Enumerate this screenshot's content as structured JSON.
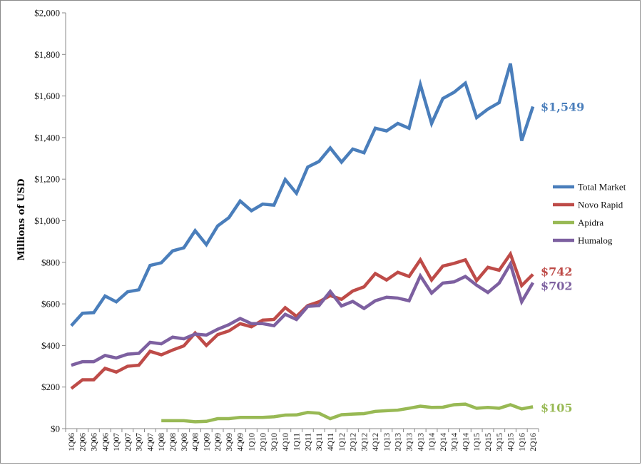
{
  "chart_data": {
    "type": "line",
    "title": "",
    "xlabel": "",
    "ylabel": "Millions of USD",
    "ylim": [
      0,
      2000
    ],
    "yticks": [
      0,
      200,
      400,
      600,
      800,
      1000,
      1200,
      1400,
      1600,
      1800,
      2000
    ],
    "ytick_labels": [
      "$0",
      "$200",
      "$400",
      "$600",
      "$800",
      "$1,000",
      "$1,200",
      "$1,400",
      "$1,600",
      "$1,800",
      "$2,000"
    ],
    "grid": false,
    "legend_position": "right",
    "categories": [
      "1Q06",
      "2Q06",
      "3Q06",
      "4Q06",
      "1Q07",
      "2Q07",
      "3Q07",
      "4Q07",
      "1Q08",
      "2Q08",
      "3Q08",
      "4Q08",
      "1Q09",
      "2Q09",
      "3Q09",
      "4Q09",
      "1Q10",
      "2Q10",
      "3Q10",
      "4Q10",
      "1Q11",
      "2Q11",
      "3Q11",
      "4Q11",
      "1Q12",
      "2Q12",
      "3Q12",
      "4Q12",
      "1Q13",
      "2Q13",
      "3Q13",
      "4Q13",
      "1Q14",
      "2Q14",
      "3Q14",
      "4Q14",
      "1Q15",
      "2Q15",
      "3Q15",
      "4Q15",
      "1Q16",
      "2Q16"
    ],
    "series": [
      {
        "name": "Total Market",
        "color": "#4a7ebb",
        "end_label": "$1,549",
        "values": [
          495,
          555,
          558,
          638,
          610,
          658,
          668,
          785,
          798,
          855,
          870,
          952,
          885,
          975,
          1015,
          1095,
          1048,
          1080,
          1075,
          1198,
          1132,
          1258,
          1285,
          1350,
          1282,
          1345,
          1327,
          1445,
          1432,
          1468,
          1445,
          1655,
          1468,
          1588,
          1618,
          1662,
          1496,
          1537,
          1568,
          1756,
          1385,
          1549
        ]
      },
      {
        "name": "Novo Rapid",
        "color": "#be4b48",
        "end_label": "$742",
        "values": [
          193,
          235,
          235,
          290,
          272,
          300,
          305,
          372,
          355,
          378,
          398,
          460,
          400,
          452,
          470,
          505,
          490,
          522,
          525,
          582,
          540,
          592,
          610,
          640,
          622,
          662,
          682,
          746,
          715,
          752,
          732,
          812,
          715,
          782,
          795,
          812,
          712,
          776,
          762,
          840,
          688,
          742
        ]
      },
      {
        "name": "Apidra",
        "color": "#98b954",
        "end_label": "$105",
        "values": [
          null,
          null,
          null,
          null,
          null,
          null,
          null,
          null,
          38,
          38,
          38,
          33,
          35,
          48,
          48,
          54,
          54,
          54,
          57,
          65,
          66,
          78,
          74,
          48,
          67,
          70,
          72,
          83,
          86,
          89,
          98,
          108,
          102,
          103,
          115,
          118,
          98,
          102,
          98,
          115,
          95,
          105
        ]
      },
      {
        "name": "Humalog",
        "color": "#7d60a0",
        "end_label": "$702",
        "values": [
          305,
          322,
          322,
          352,
          340,
          358,
          362,
          415,
          408,
          440,
          432,
          455,
          450,
          478,
          500,
          530,
          505,
          505,
          495,
          550,
          525,
          588,
          592,
          660,
          590,
          612,
          578,
          615,
          632,
          628,
          615,
          735,
          652,
          700,
          706,
          732,
          690,
          655,
          700,
          792,
          610,
          702
        ]
      }
    ]
  }
}
